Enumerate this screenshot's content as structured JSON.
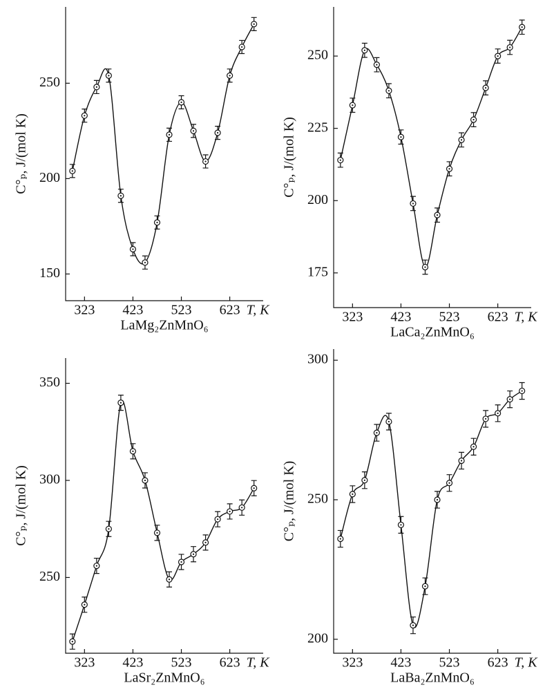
{
  "chart_data": [
    {
      "type": "line",
      "title": "LaMg₂ZnMnO₆",
      "xlabel": "T, K",
      "ylabel": "C°ₚ, J/(mol K)",
      "x": [
        298,
        323,
        348,
        373,
        398,
        423,
        448,
        473,
        498,
        523,
        548,
        573,
        598,
        623,
        648,
        673
      ],
      "values": [
        204,
        233,
        248,
        254,
        191,
        163,
        156,
        177,
        223,
        240,
        225,
        209,
        224,
        254,
        269,
        281
      ],
      "errors": [
        2,
        2,
        2,
        2,
        2,
        2,
        2,
        2,
        2,
        2,
        2,
        2,
        2,
        2,
        2,
        2
      ],
      "xlim": [
        284,
        692
      ],
      "xticks": [
        323,
        423,
        523,
        623
      ],
      "ylim": [
        136,
        290
      ],
      "yticks": [
        150,
        200,
        250
      ]
    },
    {
      "type": "line",
      "title": "LaCa₂ZnMnO₆",
      "xlabel": "T, K",
      "ylabel": "C°ₚ, J/(mol K)",
      "x": [
        298,
        323,
        348,
        373,
        398,
        423,
        448,
        473,
        498,
        523,
        548,
        573,
        598,
        623,
        648,
        673
      ],
      "values": [
        214,
        233,
        252,
        247,
        238,
        222,
        199,
        177,
        195,
        211,
        221,
        228,
        239,
        250,
        253,
        260
      ],
      "errors": [
        1.5,
        1.5,
        1.5,
        1.5,
        1.5,
        1.5,
        1.5,
        1.5,
        1.5,
        1.5,
        1.5,
        1.5,
        1.5,
        1.5,
        1.5,
        1.5
      ],
      "xlim": [
        284,
        692
      ],
      "xticks": [
        323,
        423,
        523,
        623
      ],
      "ylim": [
        163,
        267
      ],
      "yticks": [
        175,
        200,
        225,
        250
      ]
    },
    {
      "type": "line",
      "title": "LaSr₂ZnMnO₆",
      "xlabel": "T, K",
      "ylabel": "C°ₚ, J/(mol K)",
      "x": [
        298,
        323,
        348,
        373,
        398,
        423,
        448,
        473,
        498,
        523,
        548,
        573,
        598,
        623,
        648,
        673
      ],
      "values": [
        217,
        236,
        256,
        275,
        340,
        315,
        300,
        273,
        249,
        258,
        262,
        268,
        280,
        284,
        286,
        296
      ],
      "errors": [
        2.5,
        2.5,
        2.5,
        2.5,
        2.5,
        2.5,
        2.5,
        2.5,
        2.5,
        2.5,
        2.5,
        2.5,
        2.5,
        2.5,
        2.5,
        2.5
      ],
      "xlim": [
        284,
        692
      ],
      "xticks": [
        323,
        423,
        523,
        623
      ],
      "ylim": [
        211,
        363
      ],
      "yticks": [
        250,
        300,
        350
      ]
    },
    {
      "type": "line",
      "title": "LaBa₂ZnMnO₆",
      "xlabel": "T, K",
      "ylabel": "C°ₚ, J/(mol K)",
      "x": [
        298,
        323,
        348,
        373,
        398,
        423,
        448,
        473,
        498,
        523,
        548,
        573,
        598,
        623,
        648,
        673
      ],
      "values": [
        236,
        252,
        257,
        274,
        278,
        241,
        205,
        219,
        250,
        256,
        264,
        269,
        279,
        281,
        286,
        289
      ],
      "errors": [
        2,
        2,
        2,
        2,
        2,
        2,
        2,
        2,
        2,
        2,
        2,
        2,
        2,
        2,
        2,
        2
      ],
      "xlim": [
        284,
        692
      ],
      "xticks": [
        323,
        423,
        523,
        623
      ],
      "ylim": [
        195,
        304
      ],
      "yticks": [
        200,
        250,
        300
      ]
    }
  ]
}
